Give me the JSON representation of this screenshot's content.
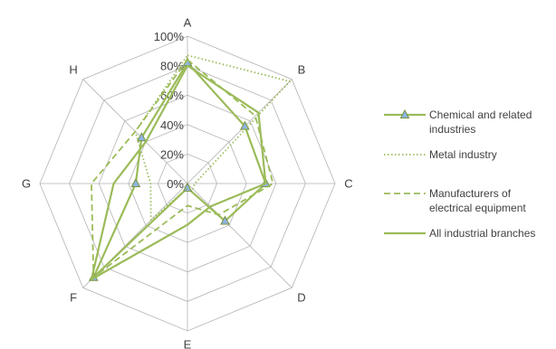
{
  "chart_data": {
    "type": "radar",
    "categories": [
      "A",
      "B",
      "C",
      "D",
      "E",
      "F",
      "G",
      "H"
    ],
    "ticks": [
      "0%",
      "20%",
      "40%",
      "60%",
      "80%",
      "100%"
    ],
    "rmax": 100,
    "series": [
      {
        "name": "Chemical and related industries",
        "color": "#9bbb59",
        "dash": "solid",
        "marker": "triangle",
        "values": [
          82,
          55,
          53,
          36,
          3,
          90,
          35,
          44
        ]
      },
      {
        "name": "Metal industry",
        "color": "#9bbb59",
        "dash": "dotted",
        "marker": "none",
        "values": [
          87,
          98,
          5,
          5,
          3,
          35,
          25,
          50
        ]
      },
      {
        "name": "Manufacturers of electrical equipment",
        "color": "#9bbb59",
        "dash": "dashed",
        "marker": "none",
        "values": [
          84,
          65,
          58,
          30,
          15,
          90,
          65,
          50
        ]
      },
      {
        "name": "All industrial branches",
        "color": "#9bbb59",
        "dash": "solid",
        "marker": "none",
        "values": [
          80,
          68,
          53,
          22,
          28,
          92,
          50,
          40
        ]
      }
    ]
  }
}
